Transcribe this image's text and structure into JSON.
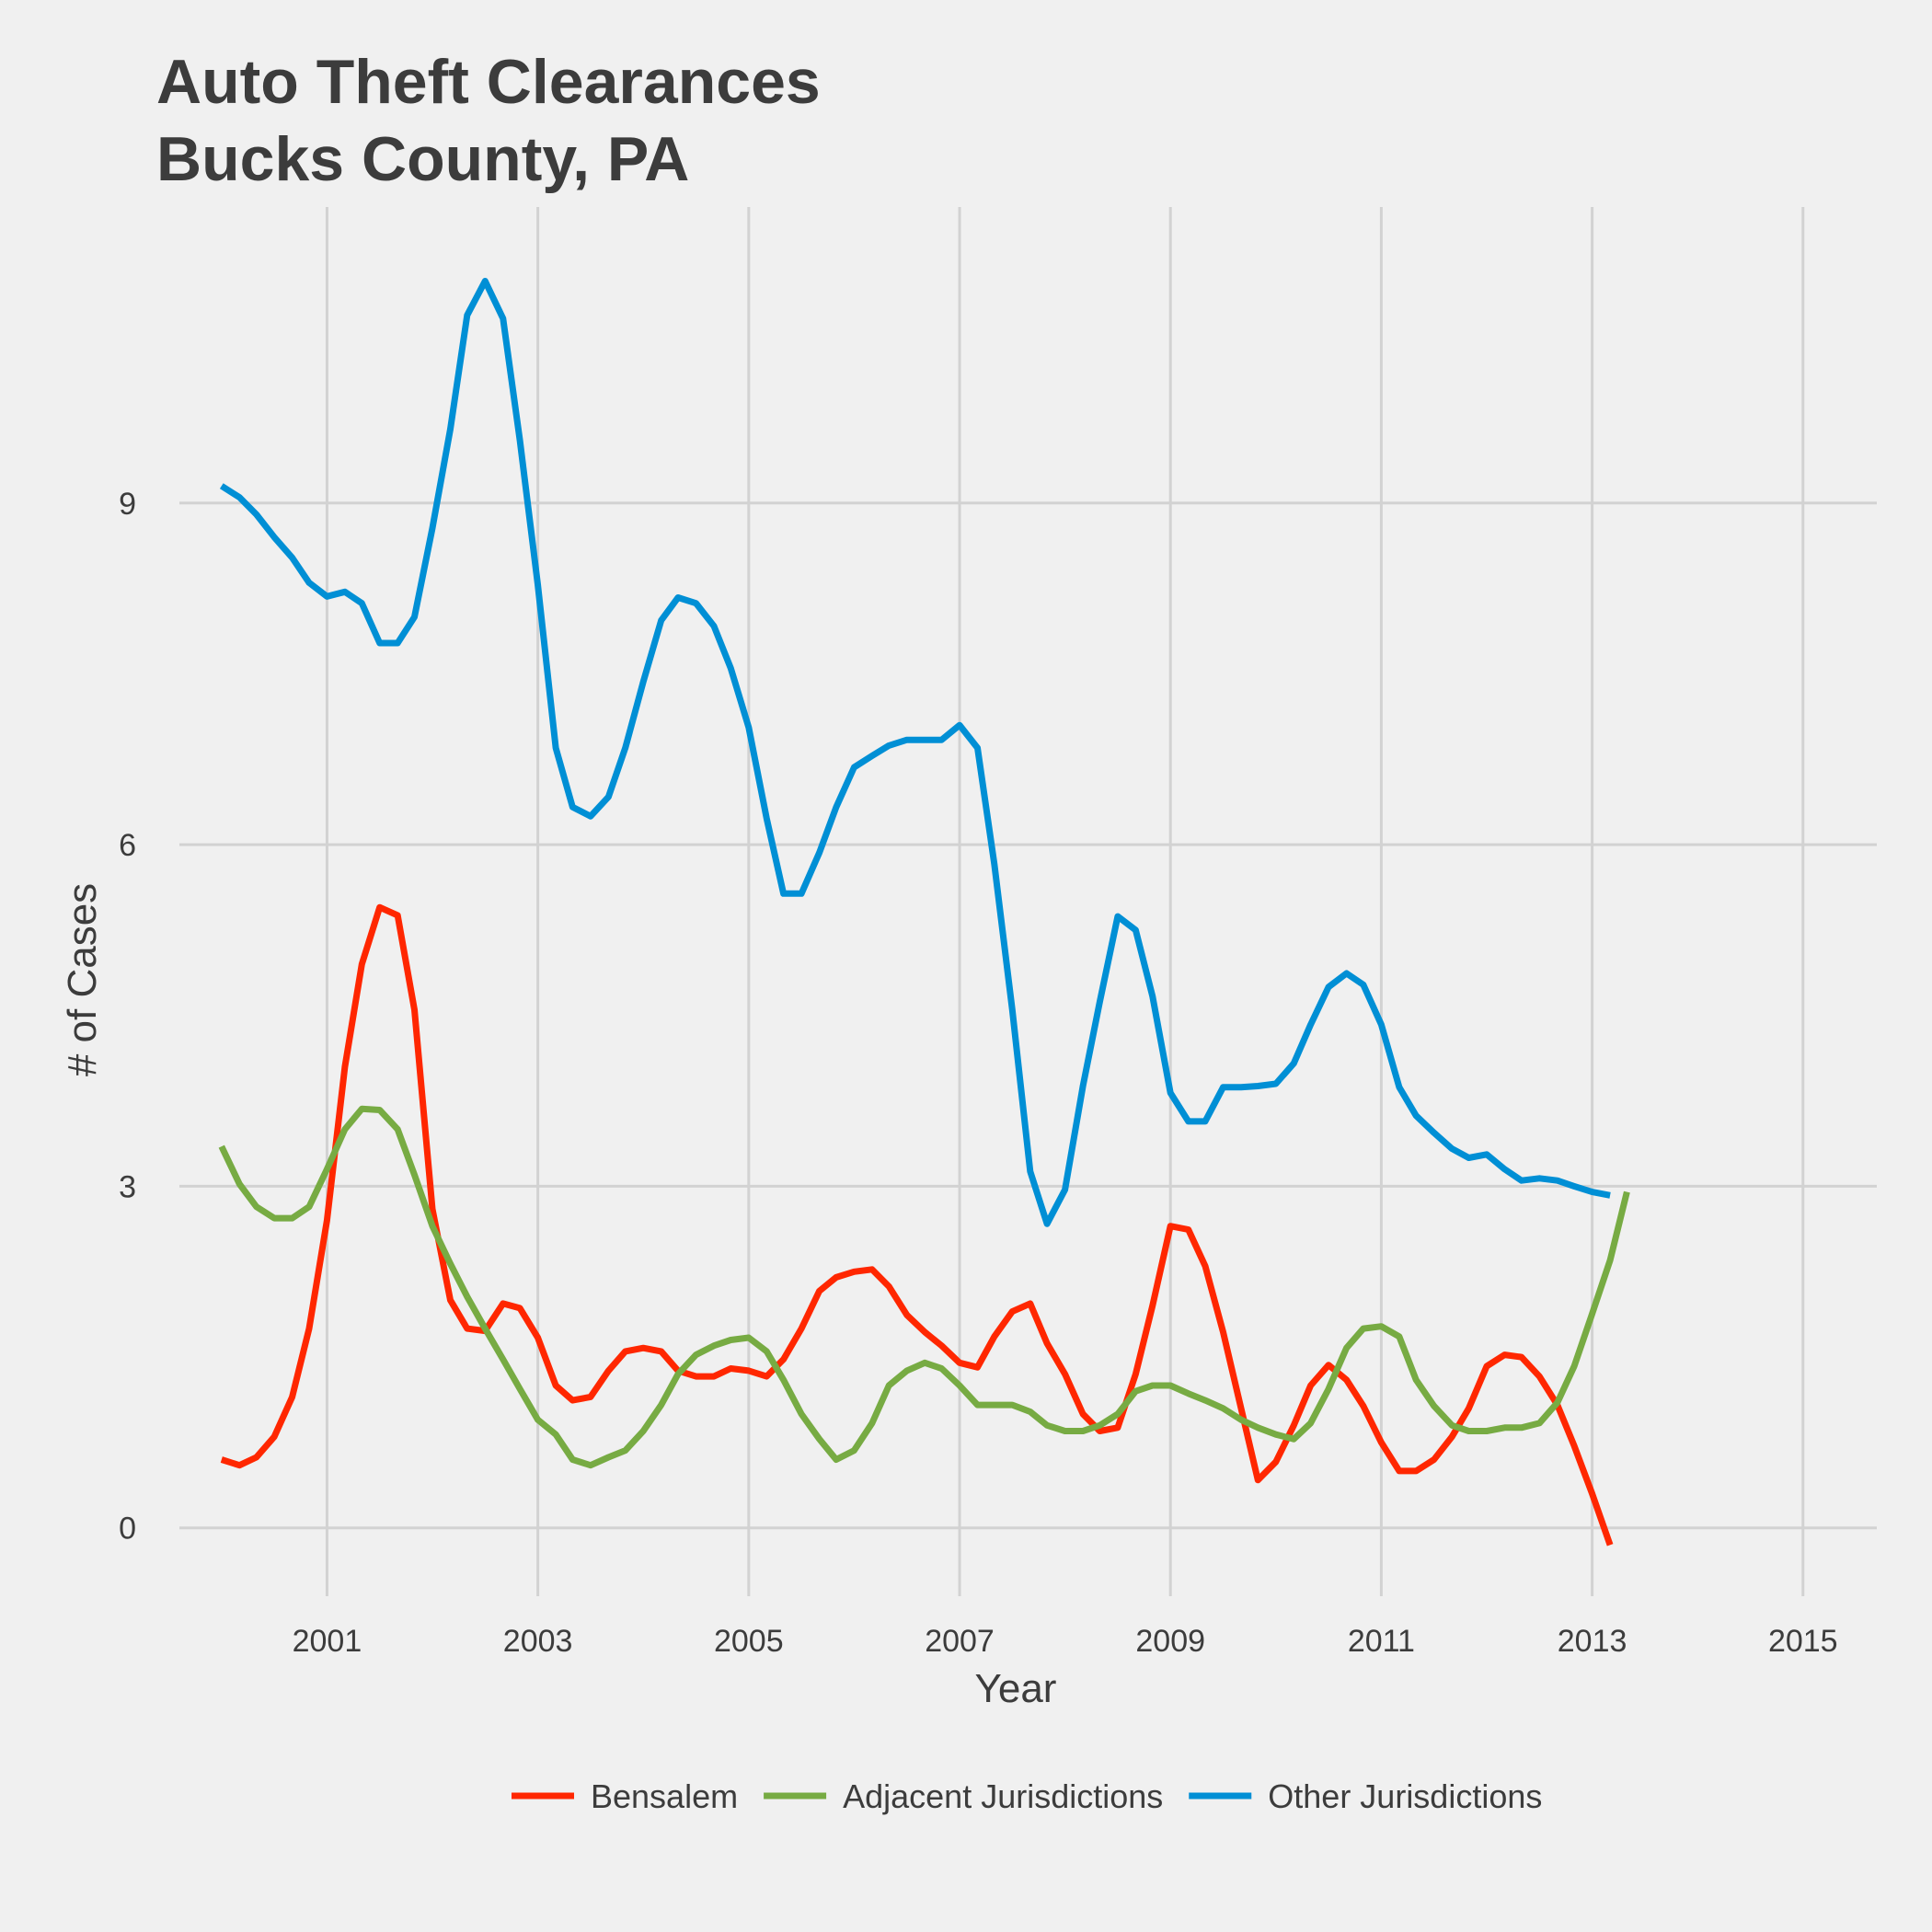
{
  "chart_data": {
    "type": "line",
    "title": [
      "Auto Theft Clearances",
      "Bucks County, PA"
    ],
    "xlabel": "Year",
    "ylabel": "# of Cases",
    "xlim": [
      1999.6,
      2015.7
    ],
    "ylim": [
      -0.6,
      11.6
    ],
    "x_ticks": [
      2001,
      2003,
      2005,
      2007,
      2009,
      2011,
      2013,
      2015
    ],
    "y_ticks": [
      0,
      3,
      6,
      9
    ],
    "grid": true,
    "legend_position": "bottom",
    "series": [
      {
        "name": "Bensalem",
        "color": "#ff2700",
        "points": [
          [
            2000,
            0.6
          ],
          [
            2000.17,
            0.55
          ],
          [
            2000.33,
            0.62
          ],
          [
            2000.5,
            0.8
          ],
          [
            2000.67,
            1.15
          ],
          [
            2000.83,
            1.75
          ],
          [
            2001,
            2.7
          ],
          [
            2001.17,
            4.05
          ],
          [
            2001.33,
            4.95
          ],
          [
            2001.5,
            5.45
          ],
          [
            2001.67,
            5.38
          ],
          [
            2001.83,
            4.55
          ],
          [
            2002,
            2.8
          ],
          [
            2002.17,
            2.0
          ],
          [
            2002.33,
            1.75
          ],
          [
            2002.5,
            1.73
          ],
          [
            2002.67,
            1.97
          ],
          [
            2002.83,
            1.93
          ],
          [
            2003,
            1.67
          ],
          [
            2003.17,
            1.25
          ],
          [
            2003.33,
            1.12
          ],
          [
            2003.5,
            1.15
          ],
          [
            2003.67,
            1.38
          ],
          [
            2003.83,
            1.55
          ],
          [
            2004,
            1.58
          ],
          [
            2004.17,
            1.55
          ],
          [
            2004.33,
            1.38
          ],
          [
            2004.5,
            1.33
          ],
          [
            2004.67,
            1.33
          ],
          [
            2004.83,
            1.4
          ],
          [
            2005,
            1.38
          ],
          [
            2005.17,
            1.33
          ],
          [
            2005.33,
            1.48
          ],
          [
            2005.5,
            1.75
          ],
          [
            2005.67,
            2.08
          ],
          [
            2005.83,
            2.2
          ],
          [
            2006,
            2.25
          ],
          [
            2006.17,
            2.27
          ],
          [
            2006.33,
            2.12
          ],
          [
            2006.5,
            1.87
          ],
          [
            2006.67,
            1.72
          ],
          [
            2006.83,
            1.6
          ],
          [
            2007,
            1.45
          ],
          [
            2007.17,
            1.41
          ],
          [
            2007.33,
            1.68
          ],
          [
            2007.5,
            1.9
          ],
          [
            2007.67,
            1.97
          ],
          [
            2007.83,
            1.62
          ],
          [
            2008,
            1.35
          ],
          [
            2008.17,
            1.0
          ],
          [
            2008.33,
            0.85
          ],
          [
            2008.5,
            0.88
          ],
          [
            2008.67,
            1.35
          ],
          [
            2008.83,
            1.95
          ],
          [
            2009,
            2.65
          ],
          [
            2009.17,
            2.62
          ],
          [
            2009.33,
            2.3
          ],
          [
            2009.5,
            1.72
          ],
          [
            2009.67,
            1.05
          ],
          [
            2009.83,
            0.42
          ],
          [
            2010,
            0.58
          ],
          [
            2010.17,
            0.9
          ],
          [
            2010.33,
            1.25
          ],
          [
            2010.5,
            1.43
          ],
          [
            2010.67,
            1.3
          ],
          [
            2010.83,
            1.07
          ],
          [
            2011,
            0.75
          ],
          [
            2011.17,
            0.5
          ],
          [
            2011.33,
            0.5
          ],
          [
            2011.5,
            0.6
          ],
          [
            2011.67,
            0.8
          ],
          [
            2011.83,
            1.05
          ],
          [
            2012,
            1.42
          ],
          [
            2012.17,
            1.52
          ],
          [
            2012.33,
            1.5
          ],
          [
            2012.5,
            1.33
          ],
          [
            2012.67,
            1.08
          ],
          [
            2012.83,
            0.72
          ],
          [
            2013,
            0.3
          ],
          [
            2013.17,
            -0.15
          ]
        ]
      },
      {
        "name": "Adjacent Jurisdictions",
        "color": "#77ab43",
        "points": [
          [
            2000,
            3.35
          ],
          [
            2000.17,
            3.02
          ],
          [
            2000.33,
            2.82
          ],
          [
            2000.5,
            2.72
          ],
          [
            2000.67,
            2.72
          ],
          [
            2000.83,
            2.82
          ],
          [
            2001,
            3.15
          ],
          [
            2001.17,
            3.5
          ],
          [
            2001.33,
            3.68
          ],
          [
            2001.5,
            3.67
          ],
          [
            2001.67,
            3.5
          ],
          [
            2001.83,
            3.1
          ],
          [
            2002,
            2.65
          ],
          [
            2002.17,
            2.32
          ],
          [
            2002.33,
            2.03
          ],
          [
            2002.5,
            1.75
          ],
          [
            2002.67,
            1.48
          ],
          [
            2002.83,
            1.22
          ],
          [
            2003,
            0.95
          ],
          [
            2003.17,
            0.82
          ],
          [
            2003.33,
            0.6
          ],
          [
            2003.5,
            0.55
          ],
          [
            2003.67,
            0.62
          ],
          [
            2003.83,
            0.68
          ],
          [
            2004,
            0.85
          ],
          [
            2004.17,
            1.08
          ],
          [
            2004.33,
            1.35
          ],
          [
            2004.5,
            1.52
          ],
          [
            2004.67,
            1.6
          ],
          [
            2004.83,
            1.65
          ],
          [
            2005,
            1.67
          ],
          [
            2005.17,
            1.55
          ],
          [
            2005.33,
            1.3
          ],
          [
            2005.5,
            1.0
          ],
          [
            2005.67,
            0.78
          ],
          [
            2005.83,
            0.6
          ],
          [
            2006,
            0.68
          ],
          [
            2006.17,
            0.92
          ],
          [
            2006.33,
            1.25
          ],
          [
            2006.5,
            1.38
          ],
          [
            2006.67,
            1.45
          ],
          [
            2006.83,
            1.4
          ],
          [
            2007,
            1.25
          ],
          [
            2007.17,
            1.08
          ],
          [
            2007.33,
            1.08
          ],
          [
            2007.5,
            1.08
          ],
          [
            2007.67,
            1.02
          ],
          [
            2007.83,
            0.9
          ],
          [
            2008,
            0.85
          ],
          [
            2008.17,
            0.85
          ],
          [
            2008.33,
            0.9
          ],
          [
            2008.5,
            1.0
          ],
          [
            2008.67,
            1.2
          ],
          [
            2008.83,
            1.25
          ],
          [
            2009,
            1.25
          ],
          [
            2009.17,
            1.18
          ],
          [
            2009.33,
            1.12
          ],
          [
            2009.5,
            1.05
          ],
          [
            2009.67,
            0.95
          ],
          [
            2009.83,
            0.88
          ],
          [
            2010,
            0.82
          ],
          [
            2010.17,
            0.78
          ],
          [
            2010.33,
            0.92
          ],
          [
            2010.5,
            1.22
          ],
          [
            2010.67,
            1.58
          ],
          [
            2010.83,
            1.75
          ],
          [
            2011,
            1.77
          ],
          [
            2011.17,
            1.68
          ],
          [
            2011.33,
            1.3
          ],
          [
            2011.5,
            1.07
          ],
          [
            2011.67,
            0.9
          ],
          [
            2011.83,
            0.85
          ],
          [
            2012,
            0.85
          ],
          [
            2012.17,
            0.88
          ],
          [
            2012.33,
            0.88
          ],
          [
            2012.5,
            0.92
          ],
          [
            2012.67,
            1.1
          ],
          [
            2012.83,
            1.42
          ],
          [
            2013,
            1.88
          ],
          [
            2013.17,
            2.35
          ],
          [
            2013.33,
            2.95
          ]
        ]
      },
      {
        "name": "Other Jurisdictions",
        "color": "#008fd5",
        "points": [
          [
            2000,
            9.15
          ],
          [
            2000.17,
            9.05
          ],
          [
            2000.33,
            8.9
          ],
          [
            2000.5,
            8.7
          ],
          [
            2000.67,
            8.52
          ],
          [
            2000.83,
            8.3
          ],
          [
            2001,
            8.18
          ],
          [
            2001.17,
            8.22
          ],
          [
            2001.33,
            8.12
          ],
          [
            2001.5,
            7.77
          ],
          [
            2001.67,
            7.77
          ],
          [
            2001.83,
            8.0
          ],
          [
            2002,
            8.78
          ],
          [
            2002.17,
            9.65
          ],
          [
            2002.33,
            10.65
          ],
          [
            2002.5,
            10.95
          ],
          [
            2002.67,
            10.62
          ],
          [
            2002.83,
            9.55
          ],
          [
            2003,
            8.28
          ],
          [
            2003.17,
            6.85
          ],
          [
            2003.33,
            6.33
          ],
          [
            2003.5,
            6.25
          ],
          [
            2003.67,
            6.42
          ],
          [
            2003.83,
            6.85
          ],
          [
            2004,
            7.43
          ],
          [
            2004.17,
            7.97
          ],
          [
            2004.33,
            8.17
          ],
          [
            2004.5,
            8.12
          ],
          [
            2004.67,
            7.92
          ],
          [
            2004.83,
            7.55
          ],
          [
            2005,
            7.03
          ],
          [
            2005.17,
            6.23
          ],
          [
            2005.33,
            5.57
          ],
          [
            2005.5,
            5.57
          ],
          [
            2005.67,
            5.93
          ],
          [
            2005.83,
            6.33
          ],
          [
            2006,
            6.68
          ],
          [
            2006.17,
            6.78
          ],
          [
            2006.33,
            6.87
          ],
          [
            2006.5,
            6.92
          ],
          [
            2006.67,
            6.92
          ],
          [
            2006.83,
            6.92
          ],
          [
            2007,
            7.05
          ],
          [
            2007.17,
            6.85
          ],
          [
            2007.33,
            5.83
          ],
          [
            2007.5,
            4.55
          ],
          [
            2007.67,
            3.13
          ],
          [
            2007.83,
            2.67
          ],
          [
            2008,
            2.97
          ],
          [
            2008.17,
            3.88
          ],
          [
            2008.33,
            4.62
          ],
          [
            2008.5,
            5.37
          ],
          [
            2008.67,
            5.25
          ],
          [
            2008.83,
            4.67
          ],
          [
            2009,
            3.82
          ],
          [
            2009.17,
            3.57
          ],
          [
            2009.33,
            3.57
          ],
          [
            2009.5,
            3.87
          ],
          [
            2009.67,
            3.87
          ],
          [
            2009.83,
            3.88
          ],
          [
            2010,
            3.9
          ],
          [
            2010.17,
            4.08
          ],
          [
            2010.33,
            4.42
          ],
          [
            2010.5,
            4.75
          ],
          [
            2010.67,
            4.87
          ],
          [
            2010.83,
            4.77
          ],
          [
            2011,
            4.42
          ],
          [
            2011.17,
            3.87
          ],
          [
            2011.33,
            3.62
          ],
          [
            2011.5,
            3.47
          ],
          [
            2011.67,
            3.33
          ],
          [
            2011.83,
            3.25
          ],
          [
            2012,
            3.28
          ],
          [
            2012.17,
            3.15
          ],
          [
            2012.33,
            3.05
          ],
          [
            2012.5,
            3.07
          ],
          [
            2012.67,
            3.05
          ],
          [
            2012.83,
            3.0
          ],
          [
            2013,
            2.95
          ],
          [
            2013.17,
            2.92
          ]
        ]
      }
    ]
  }
}
